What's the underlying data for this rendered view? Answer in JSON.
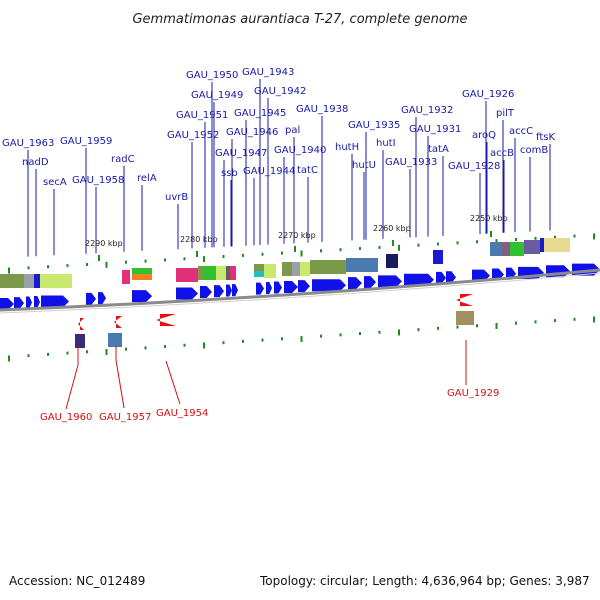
{
  "title": "Gemmatimonas aurantiaca T-27, complete genome",
  "footer": {
    "accession": "Accession: NC_012489",
    "summary": "Topology: circular; Length: 4,636,964 bp; Genes: 3,987"
  },
  "colors": {
    "forward_gene": "#1010e8",
    "reverse_gene": "#e81010",
    "label_forward": "#1a1aa8",
    "label_reverse": "#d41010",
    "backbone": "#8a8a8a",
    "tick": "#1f8a1f"
  },
  "kbp_labels": [
    "2290 kbp",
    "2280 kbp",
    "2270 kbp",
    "2260 kbp",
    "2250 kbp"
  ],
  "forward_labels": [
    "GAU_1963",
    "nadD",
    "secA",
    "GAU_1959",
    "GAU_1958",
    "radC",
    "relA",
    "uvrB",
    "GAU_1952",
    "GAU_1951",
    "GAU_1950",
    "GAU_1949",
    "GAU_1943",
    "GAU_1945",
    "GAU_1946",
    "GAU_1947",
    "ssb",
    "GAU_1944",
    "GAU_1942",
    "pal",
    "GAU_1940",
    "tatC",
    "GAU_1938",
    "hutH",
    "hutU",
    "GAU_1935",
    "hutI",
    "GAU_1932",
    "GAU_1931",
    "GAU_1933",
    "tatA",
    "GAU_1926",
    "aroQ",
    "GAU_1928",
    "pilT",
    "accB",
    "accC",
    "comB",
    "ftsK"
  ],
  "reverse_labels": [
    "GAU_1960",
    "GAU_1957",
    "GAU_1954",
    "GAU_1929"
  ]
}
